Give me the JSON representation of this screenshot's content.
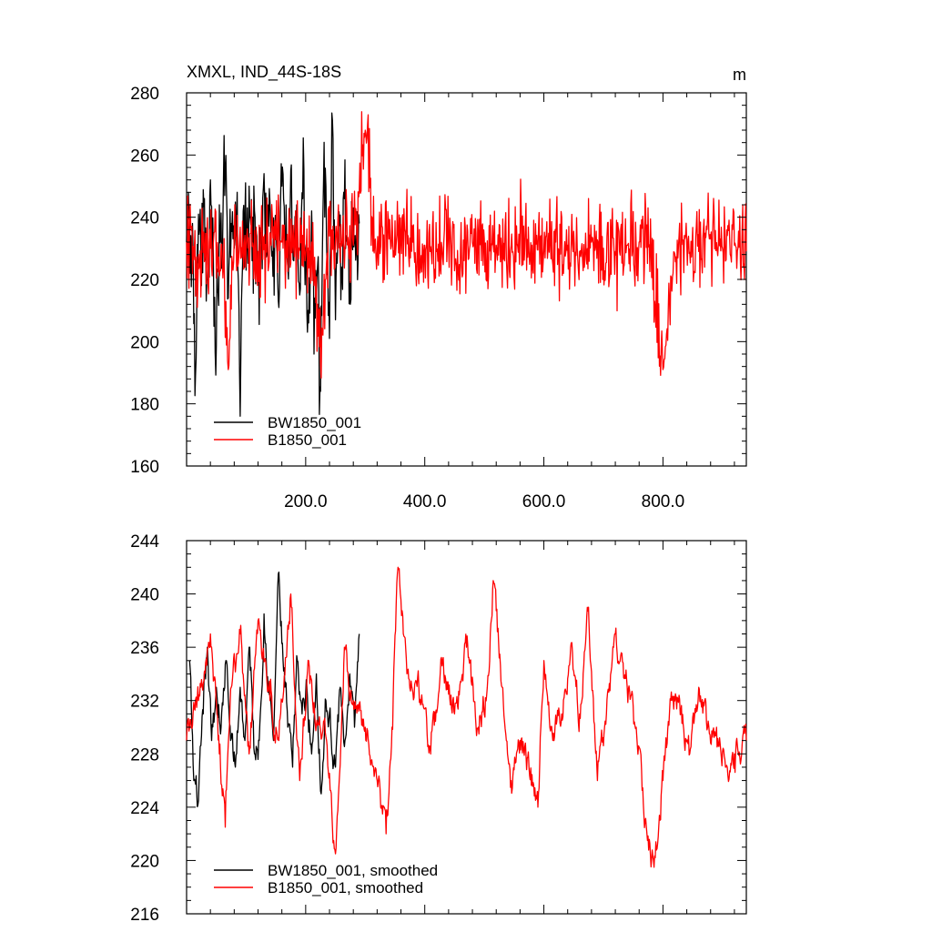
{
  "header": {
    "title": "XMXL, IND_44S-18S",
    "units": "m"
  },
  "chart_data": [
    {
      "type": "line",
      "panel": "raw",
      "xlim": [
        0,
        940
      ],
      "ylim": [
        160,
        280
      ],
      "x_ticks": [
        200,
        400,
        600,
        800
      ],
      "x_tick_labels": [
        "200.0",
        "400.0",
        "600.0",
        "800.0"
      ],
      "y_ticks": [
        160,
        180,
        200,
        220,
        240,
        260,
        280
      ],
      "y_tick_labels": [
        "160",
        "180",
        "200",
        "220",
        "240",
        "260",
        "280"
      ],
      "legend_position": "bottom-left",
      "series": [
        {
          "name": "BW1850_001",
          "color": "#000000",
          "x_start": 0,
          "x_end": 290,
          "anchors": [
            [
              0,
              232
            ],
            [
              3,
              248
            ],
            [
              6,
              222
            ],
            [
              10,
              238
            ],
            [
              15,
              189
            ],
            [
              20,
              241
            ],
            [
              25,
              218
            ],
            [
              30,
              246
            ],
            [
              35,
              220
            ],
            [
              40,
              252
            ],
            [
              45,
              228
            ],
            [
              50,
              199
            ],
            [
              55,
              244
            ],
            [
              60,
              226
            ],
            [
              65,
              255
            ],
            [
              70,
              214
            ],
            [
              75,
              238
            ],
            [
              80,
              230
            ],
            [
              85,
              248
            ],
            [
              90,
              176
            ],
            [
              95,
              242
            ],
            [
              100,
              223
            ],
            [
              105,
              250
            ],
            [
              110,
              226
            ],
            [
              115,
              240
            ],
            [
              120,
              219
            ],
            [
              125,
              235
            ],
            [
              130,
              254
            ],
            [
              135,
              228
            ],
            [
              140,
              245
            ],
            [
              145,
              221
            ],
            [
              150,
              238
            ],
            [
              155,
              211
            ],
            [
              160,
              250
            ],
            [
              165,
              230
            ],
            [
              170,
              224
            ],
            [
              175,
              255
            ],
            [
              180,
              226
            ],
            [
              185,
              244
            ],
            [
              190,
              215
            ],
            [
              195,
              246
            ],
            [
              200,
              230
            ],
            [
              205,
              206
            ],
            [
              210,
              242
            ],
            [
              215,
              214
            ],
            [
              220,
              224
            ],
            [
              225,
              184
            ],
            [
              230,
              252
            ],
            [
              235,
              232
            ],
            [
              240,
              201
            ],
            [
              245,
              271
            ],
            [
              250,
              207
            ],
            [
              255,
              240
            ],
            [
              260,
              224
            ],
            [
              265,
              246
            ],
            [
              270,
              232
            ],
            [
              275,
              212
            ],
            [
              280,
              243
            ],
            [
              285,
              229
            ],
            [
              290,
              238
            ]
          ],
          "amp": 13
        },
        {
          "name": "B1850_001",
          "color": "#ff0000",
          "x_start": 0,
          "x_end": 940,
          "anchors": [
            [
              0,
              232
            ],
            [
              20,
              228
            ],
            [
              40,
              230
            ],
            [
              60,
              226
            ],
            [
              70,
              191
            ],
            [
              80,
              233
            ],
            [
              100,
              231
            ],
            [
              120,
              229
            ],
            [
              140,
              235
            ],
            [
              160,
              232
            ],
            [
              180,
              230
            ],
            [
              200,
              229
            ],
            [
              210,
              232
            ],
            [
              225,
              193
            ],
            [
              240,
              234
            ],
            [
              260,
              232
            ],
            [
              280,
              231
            ],
            [
              300,
              268
            ],
            [
              320,
              229
            ],
            [
              340,
              233
            ],
            [
              360,
              234
            ],
            [
              380,
              232
            ],
            [
              400,
              231
            ],
            [
              420,
              229
            ],
            [
              440,
              231
            ],
            [
              460,
              230
            ],
            [
              480,
              232
            ],
            [
              500,
              233
            ],
            [
              520,
              231
            ],
            [
              540,
              229
            ],
            [
              560,
              234
            ],
            [
              580,
              231
            ],
            [
              600,
              230
            ],
            [
              620,
              232
            ],
            [
              640,
              231
            ],
            [
              660,
              229
            ],
            [
              680,
              232
            ],
            [
              700,
              230
            ],
            [
              720,
              229
            ],
            [
              740,
              231
            ],
            [
              760,
              232
            ],
            [
              780,
              230
            ],
            [
              800,
              191
            ],
            [
              820,
              228
            ],
            [
              840,
              231
            ],
            [
              860,
              229
            ],
            [
              880,
              233
            ],
            [
              900,
              230
            ],
            [
              920,
              231
            ],
            [
              940,
              229
            ]
          ],
          "amp": 11
        }
      ]
    },
    {
      "type": "line",
      "panel": "smoothed",
      "xlim": [
        0,
        940
      ],
      "ylim": [
        216,
        244
      ],
      "x_ticks": [
        200,
        400,
        600,
        800
      ],
      "x_tick_labels": [],
      "y_ticks": [
        216,
        220,
        224,
        228,
        232,
        236,
        240,
        244
      ],
      "y_tick_labels": [
        "216",
        "220",
        "224",
        "228",
        "232",
        "236",
        "240",
        "244"
      ],
      "legend_position": "bottom-left",
      "series": [
        {
          "name": "BW1850_001, smoothed",
          "color": "#000000",
          "x_start": 5,
          "x_end": 290,
          "anchors": [
            [
              5,
              235
            ],
            [
              12,
              226
            ],
            [
              20,
              224.5
            ],
            [
              28,
              231
            ],
            [
              35,
              236
            ],
            [
              42,
              229
            ],
            [
              50,
              233
            ],
            [
              58,
              230
            ],
            [
              66,
              235
            ],
            [
              74,
              229
            ],
            [
              82,
              227
            ],
            [
              90,
              233
            ],
            [
              98,
              229
            ],
            [
              106,
              236
            ],
            [
              114,
              228
            ],
            [
              122,
              229
            ],
            [
              130,
              238.5
            ],
            [
              138,
              233
            ],
            [
              146,
              229
            ],
            [
              154,
              241.5
            ],
            [
              162,
              235
            ],
            [
              170,
              230
            ],
            [
              178,
              227
            ],
            [
              186,
              235
            ],
            [
              194,
              231
            ],
            [
              202,
              233
            ],
            [
              210,
              228
            ],
            [
              218,
              234
            ],
            [
              226,
              225
            ],
            [
              234,
              232
            ],
            [
              242,
              230
            ],
            [
              250,
              227
            ],
            [
              258,
              233
            ],
            [
              266,
              229
            ],
            [
              274,
              234
            ],
            [
              282,
              230
            ],
            [
              290,
              237
            ]
          ],
          "amp": 1.4
        },
        {
          "name": "B1850_001, smoothed",
          "color": "#ff0000",
          "x_start": 0,
          "x_end": 940,
          "anchors": [
            [
              0,
              229
            ],
            [
              20,
              232
            ],
            [
              40,
              237
            ],
            [
              55,
              228
            ],
            [
              65,
              222.5
            ],
            [
              75,
              233
            ],
            [
              90,
              237
            ],
            [
              105,
              228
            ],
            [
              120,
              238
            ],
            [
              140,
              232
            ],
            [
              155,
              229
            ],
            [
              175,
              240
            ],
            [
              190,
              226
            ],
            [
              205,
              235
            ],
            [
              215,
              231
            ],
            [
              235,
              229
            ],
            [
              250,
              220.5
            ],
            [
              265,
              236
            ],
            [
              280,
              232
            ],
            [
              300,
              230
            ],
            [
              320,
              226
            ],
            [
              335,
              222
            ],
            [
              345,
              230
            ],
            [
              355,
              242
            ],
            [
              370,
              234
            ],
            [
              390,
              233
            ],
            [
              410,
              228
            ],
            [
              430,
              235
            ],
            [
              450,
              231
            ],
            [
              470,
              236
            ],
            [
              490,
              230
            ],
            [
              505,
              233
            ],
            [
              515,
              241
            ],
            [
              530,
              233
            ],
            [
              545,
              226
            ],
            [
              560,
              229
            ],
            [
              575,
              227
            ],
            [
              590,
              224
            ],
            [
              600,
              235
            ],
            [
              615,
              229
            ],
            [
              630,
              231
            ],
            [
              645,
              236
            ],
            [
              660,
              231
            ],
            [
              675,
              239
            ],
            [
              690,
              226
            ],
            [
              705,
              231
            ],
            [
              720,
              237
            ],
            [
              740,
              233
            ],
            [
              755,
              230
            ],
            [
              770,
              223
            ],
            [
              785,
              219.5
            ],
            [
              800,
              226
            ],
            [
              815,
              232
            ],
            [
              830,
              231
            ],
            [
              845,
              228
            ],
            [
              860,
              233
            ],
            [
              875,
              230
            ],
            [
              890,
              230
            ],
            [
              905,
              227
            ],
            [
              920,
              228
            ],
            [
              940,
              229
            ]
          ],
          "amp": 1.3
        }
      ]
    }
  ]
}
